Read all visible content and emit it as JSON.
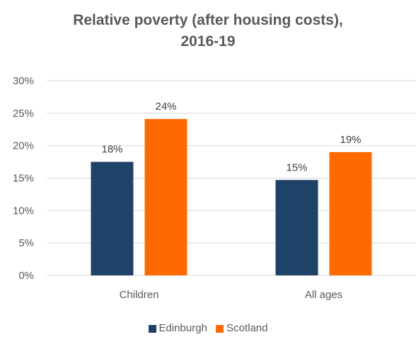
{
  "chart_data": {
    "type": "bar",
    "title_lines": [
      "Relative poverty (after housing costs),",
      "2016-19"
    ],
    "categories": [
      "Children",
      "All ages"
    ],
    "series": [
      {
        "name": "Edinburgh",
        "color": "#1f4268",
        "values": [
          0.175,
          0.147
        ],
        "labels": [
          "18%",
          "15%"
        ]
      },
      {
        "name": "Scotland",
        "color": "#ff6a00",
        "values": [
          0.241,
          0.19
        ],
        "labels": [
          "24%",
          "19%"
        ]
      }
    ],
    "ylim": [
      0,
      0.3
    ],
    "yticks": [
      {
        "value": 0.0,
        "label": "0%"
      },
      {
        "value": 0.05,
        "label": "5%"
      },
      {
        "value": 0.1,
        "label": "10%"
      },
      {
        "value": 0.15,
        "label": "15%"
      },
      {
        "value": 0.2,
        "label": "20%"
      },
      {
        "value": 0.25,
        "label": "25%"
      },
      {
        "value": 0.3,
        "label": "30%"
      }
    ],
    "grid": true,
    "legend_position": "bottom"
  }
}
